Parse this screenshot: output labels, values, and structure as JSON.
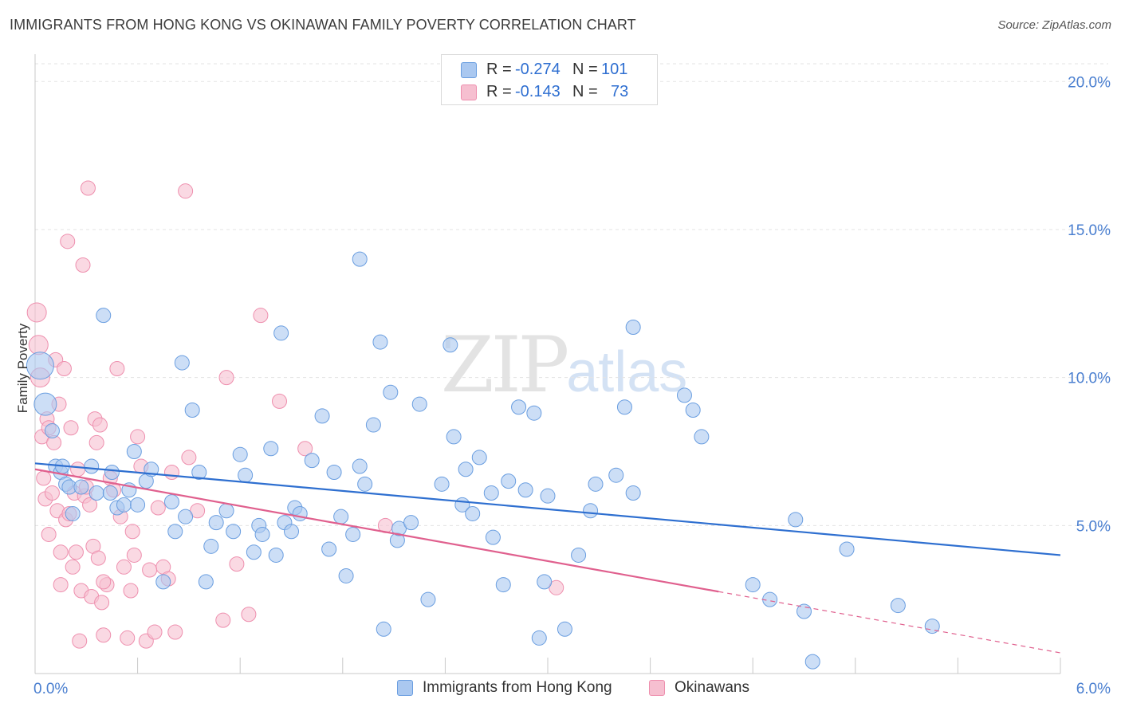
{
  "header": {
    "title": "IMMIGRANTS FROM HONG KONG VS OKINAWAN FAMILY POVERTY CORRELATION CHART",
    "source": "Source: ZipAtlas.com"
  },
  "watermark": {
    "zip": "ZIP",
    "atlas": "atlas"
  },
  "legend": {
    "rows": [
      {
        "r_label": "R =",
        "r_value": "-0.274",
        "n_label": "N =",
        "n_value": "101"
      },
      {
        "r_label": "R =",
        "r_value": "-0.143",
        "n_label": "N =",
        "n_value": "73"
      }
    ]
  },
  "bottom_legend": {
    "series1": "Immigrants from Hong Kong",
    "series2": "Okinawans"
  },
  "colors": {
    "blue_fill": "#aac8f0",
    "blue_stroke": "#6a9ee0",
    "blue_line": "#2e6fd0",
    "pink_fill": "#f6bfd0",
    "pink_stroke": "#ee8fae",
    "pink_line": "#e0608e",
    "axis_text": "#4a7fd0",
    "grid": "#e3e3e3"
  },
  "chart_data": {
    "type": "scatter",
    "title": "IMMIGRANTS FROM HONG KONG VS OKINAWAN FAMILY POVERTY CORRELATION CHART",
    "xlabel": "",
    "ylabel": "Family Poverty",
    "xlim": [
      0,
      6
    ],
    "ylim": [
      0,
      20.6
    ],
    "x_tick_labels": [
      "0.0%",
      "6.0%"
    ],
    "y_tick_labels": [
      "5.0%",
      "10.0%",
      "15.0%",
      "20.0%"
    ],
    "y_ticks": [
      5,
      10,
      15,
      20
    ],
    "grid": true,
    "series": [
      {
        "name": "Immigrants from Hong Kong",
        "color": "#6a9ee0",
        "r": -0.274,
        "n": 101,
        "trend": {
          "x0": 0,
          "y0": 7.1,
          "x1": 6,
          "y1": 4.0,
          "dashed_from": null
        },
        "points": [
          [
            0.03,
            10.4
          ],
          [
            0.06,
            9.1
          ],
          [
            0.1,
            8.2
          ],
          [
            0.12,
            7.0
          ],
          [
            0.15,
            6.8
          ],
          [
            0.18,
            6.4
          ],
          [
            0.2,
            6.3
          ],
          [
            0.22,
            5.4
          ],
          [
            0.27,
            6.3
          ],
          [
            0.33,
            7.0
          ],
          [
            0.36,
            6.1
          ],
          [
            0.4,
            12.1
          ],
          [
            0.44,
            6.1
          ],
          [
            0.45,
            6.8
          ],
          [
            0.48,
            5.6
          ],
          [
            0.52,
            5.7
          ],
          [
            0.55,
            6.2
          ],
          [
            0.58,
            7.5
          ],
          [
            0.6,
            5.7
          ],
          [
            0.65,
            6.5
          ],
          [
            0.68,
            6.9
          ],
          [
            0.75,
            3.1
          ],
          [
            0.8,
            5.8
          ],
          [
            0.82,
            4.8
          ],
          [
            0.86,
            10.5
          ],
          [
            0.88,
            5.3
          ],
          [
            0.92,
            8.9
          ],
          [
            0.96,
            6.8
          ],
          [
            1.0,
            3.1
          ],
          [
            1.03,
            4.3
          ],
          [
            1.06,
            5.1
          ],
          [
            1.12,
            5.5
          ],
          [
            1.16,
            4.8
          ],
          [
            1.2,
            7.4
          ],
          [
            1.23,
            6.7
          ],
          [
            1.28,
            4.1
          ],
          [
            1.31,
            5.0
          ],
          [
            1.33,
            4.7
          ],
          [
            1.38,
            7.6
          ],
          [
            1.41,
            4.0
          ],
          [
            1.44,
            11.5
          ],
          [
            1.46,
            5.1
          ],
          [
            1.5,
            4.8
          ],
          [
            1.52,
            5.6
          ],
          [
            1.55,
            5.4
          ],
          [
            1.62,
            7.2
          ],
          [
            1.68,
            8.7
          ],
          [
            1.72,
            4.2
          ],
          [
            1.75,
            6.8
          ],
          [
            1.79,
            5.3
          ],
          [
            1.82,
            3.3
          ],
          [
            1.86,
            4.7
          ],
          [
            1.9,
            7.0
          ],
          [
            1.93,
            6.4
          ],
          [
            1.98,
            8.4
          ],
          [
            2.02,
            11.2
          ],
          [
            2.04,
            1.5
          ],
          [
            2.08,
            9.5
          ],
          [
            2.12,
            4.5
          ],
          [
            2.13,
            4.9
          ],
          [
            2.2,
            5.1
          ],
          [
            2.25,
            9.1
          ],
          [
            2.3,
            2.5
          ],
          [
            2.38,
            6.4
          ],
          [
            2.43,
            11.1
          ],
          [
            2.45,
            8.0
          ],
          [
            2.5,
            5.7
          ],
          [
            2.52,
            6.9
          ],
          [
            2.56,
            5.4
          ],
          [
            2.6,
            7.3
          ],
          [
            2.67,
            6.1
          ],
          [
            2.68,
            4.6
          ],
          [
            2.74,
            3.0
          ],
          [
            2.77,
            6.5
          ],
          [
            2.83,
            9.0
          ],
          [
            2.87,
            6.2
          ],
          [
            2.92,
            8.8
          ],
          [
            2.95,
            1.2
          ],
          [
            2.98,
            3.1
          ],
          [
            3.0,
            6.0
          ],
          [
            3.1,
            1.5
          ],
          [
            3.18,
            4.0
          ],
          [
            3.25,
            5.5
          ],
          [
            3.28,
            6.4
          ],
          [
            3.4,
            6.7
          ],
          [
            3.45,
            9.0
          ],
          [
            3.5,
            11.7
          ],
          [
            3.5,
            6.1
          ],
          [
            3.8,
            9.4
          ],
          [
            3.85,
            8.9
          ],
          [
            3.9,
            8.0
          ],
          [
            4.2,
            3.0
          ],
          [
            4.3,
            2.5
          ],
          [
            4.45,
            5.2
          ],
          [
            4.5,
            2.1
          ],
          [
            4.55,
            0.4
          ],
          [
            4.75,
            4.2
          ],
          [
            5.05,
            2.3
          ],
          [
            5.25,
            1.6
          ],
          [
            1.9,
            14.0
          ],
          [
            0.16,
            7.0
          ]
        ]
      },
      {
        "name": "Okinawans",
        "color": "#ee8fae",
        "r": -0.143,
        "n": 73,
        "trend": {
          "x0": 0,
          "y0": 6.9,
          "x1": 6,
          "y1": 0.7,
          "dashed_from": 4.0
        },
        "points": [
          [
            0.01,
            12.2
          ],
          [
            0.02,
            11.1
          ],
          [
            0.03,
            10.0
          ],
          [
            0.04,
            8.0
          ],
          [
            0.05,
            6.6
          ],
          [
            0.06,
            5.9
          ],
          [
            0.07,
            8.6
          ],
          [
            0.08,
            8.3
          ],
          [
            0.08,
            4.7
          ],
          [
            0.1,
            6.1
          ],
          [
            0.11,
            7.8
          ],
          [
            0.12,
            10.6
          ],
          [
            0.13,
            5.5
          ],
          [
            0.14,
            9.1
          ],
          [
            0.15,
            4.1
          ],
          [
            0.15,
            3.0
          ],
          [
            0.17,
            10.3
          ],
          [
            0.18,
            5.2
          ],
          [
            0.19,
            14.6
          ],
          [
            0.2,
            5.4
          ],
          [
            0.21,
            8.3
          ],
          [
            0.22,
            3.6
          ],
          [
            0.23,
            6.1
          ],
          [
            0.24,
            4.1
          ],
          [
            0.25,
            6.9
          ],
          [
            0.26,
            1.1
          ],
          [
            0.27,
            2.8
          ],
          [
            0.28,
            13.8
          ],
          [
            0.29,
            6.0
          ],
          [
            0.3,
            6.3
          ],
          [
            0.31,
            16.4
          ],
          [
            0.32,
            5.7
          ],
          [
            0.33,
            2.6
          ],
          [
            0.34,
            4.3
          ],
          [
            0.35,
            8.6
          ],
          [
            0.36,
            7.8
          ],
          [
            0.37,
            3.9
          ],
          [
            0.38,
            8.4
          ],
          [
            0.39,
            2.4
          ],
          [
            0.4,
            1.3
          ],
          [
            0.42,
            3.0
          ],
          [
            0.44,
            6.6
          ],
          [
            0.46,
            6.2
          ],
          [
            0.48,
            10.3
          ],
          [
            0.5,
            5.3
          ],
          [
            0.52,
            3.6
          ],
          [
            0.54,
            1.2
          ],
          [
            0.56,
            2.8
          ],
          [
            0.57,
            4.8
          ],
          [
            0.58,
            4.0
          ],
          [
            0.6,
            8.0
          ],
          [
            0.62,
            7.0
          ],
          [
            0.65,
            1.1
          ],
          [
            0.7,
            1.4
          ],
          [
            0.72,
            5.6
          ],
          [
            0.75,
            3.6
          ],
          [
            0.78,
            3.2
          ],
          [
            0.8,
            6.8
          ],
          [
            0.82,
            1.4
          ],
          [
            0.88,
            16.3
          ],
          [
            0.9,
            7.3
          ],
          [
            0.95,
            5.5
          ],
          [
            1.1,
            1.8
          ],
          [
            1.12,
            10.0
          ],
          [
            1.18,
            3.7
          ],
          [
            1.25,
            2.0
          ],
          [
            1.32,
            12.1
          ],
          [
            1.43,
            9.2
          ],
          [
            1.58,
            7.6
          ],
          [
            2.05,
            5.0
          ],
          [
            3.05,
            2.9
          ],
          [
            0.4,
            3.1
          ],
          [
            0.67,
            3.5
          ]
        ]
      }
    ]
  }
}
